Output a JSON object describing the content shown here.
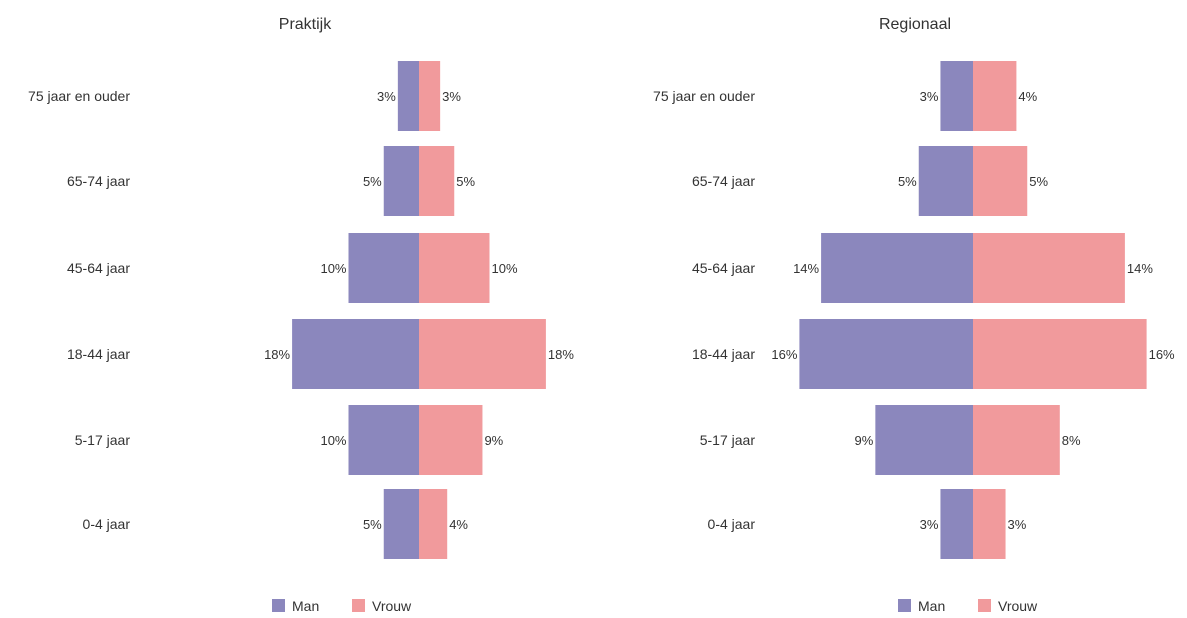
{
  "chart_data": [
    {
      "type": "bar",
      "orientation": "horizontal-population-pyramid",
      "title": "Praktijk",
      "categories": [
        "75 jaar en ouder",
        "65-74 jaar",
        "45-64 jaar",
        "18-44 jaar",
        "5-17 jaar",
        "0-4 jaar"
      ],
      "series": [
        {
          "name": "Man",
          "values": [
            3,
            5,
            10,
            18,
            10,
            5
          ],
          "labels": [
            "3%",
            "5%",
            "10%",
            "18%",
            "10%",
            "5%"
          ]
        },
        {
          "name": "Vrouw",
          "values": [
            3,
            5,
            10,
            18,
            9,
            4
          ],
          "labels": [
            "3%",
            "5%",
            "10%",
            "18%",
            "9%",
            "4%"
          ]
        }
      ],
      "legend_position": "bottom",
      "grid": false
    },
    {
      "type": "bar",
      "orientation": "horizontal-population-pyramid",
      "title": "Regionaal",
      "categories": [
        "75 jaar en ouder",
        "65-74 jaar",
        "45-64 jaar",
        "18-44 jaar",
        "5-17 jaar",
        "0-4 jaar"
      ],
      "series": [
        {
          "name": "Man",
          "values": [
            3,
            5,
            14,
            16,
            9,
            3
          ],
          "labels": [
            "3%",
            "5%",
            "14%",
            "16%",
            "9%",
            "3%"
          ]
        },
        {
          "name": "Vrouw",
          "values": [
            4,
            5,
            14,
            16,
            8,
            3
          ],
          "labels": [
            "4%",
            "5%",
            "14%",
            "16%",
            "8%",
            "3%"
          ]
        }
      ],
      "legend_position": "bottom",
      "grid": false
    }
  ],
  "colors": {
    "man": "#8b87bd",
    "vrouw": "#f19a9c"
  }
}
